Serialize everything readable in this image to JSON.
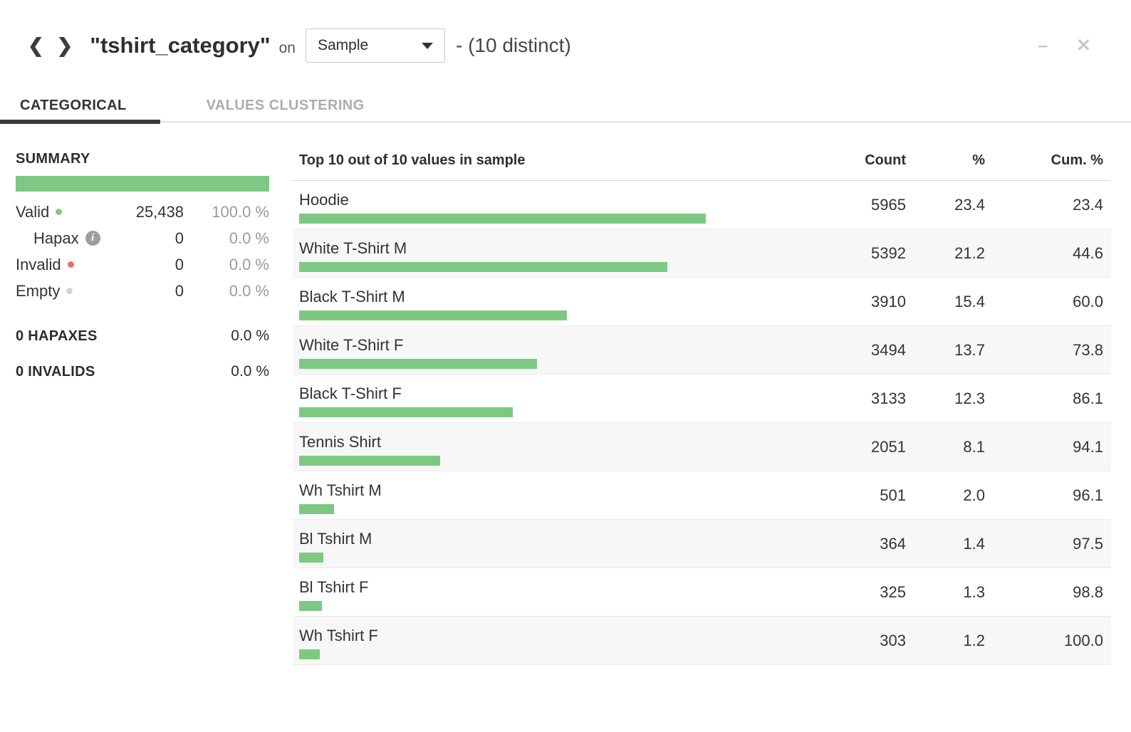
{
  "header": {
    "title": "\"tshirt_category\"",
    "on_label": "on",
    "sample_select": {
      "value": "Sample"
    },
    "distinct_label": "- (10 distinct)",
    "nav": {
      "prev_glyph": "❮",
      "next_glyph": "❯"
    },
    "window": {
      "minimize_glyph": "–",
      "close_glyph": "✕"
    }
  },
  "tabs": [
    {
      "label": "CATEGORICAL",
      "active": true
    },
    {
      "label": "VALUES CLUSTERING",
      "active": false
    }
  ],
  "summary": {
    "heading": "SUMMARY",
    "rows": [
      {
        "label": "Valid",
        "dot": "green",
        "count": "25,438",
        "pct": "100.0 %"
      },
      {
        "label": "Hapax",
        "info": true,
        "count": "0",
        "pct": "0.0 %"
      },
      {
        "label": "Invalid",
        "dot": "red",
        "count": "0",
        "pct": "0.0 %"
      },
      {
        "label": "Empty",
        "dot": "gray",
        "count": "0",
        "pct": "0.0 %"
      }
    ],
    "hapaxes": {
      "label": "0 HAPAXES",
      "pct": "0.0 %"
    },
    "invalids": {
      "label": "0 INVALIDS",
      "pct": "0.0 %"
    },
    "info_glyph": "i"
  },
  "table": {
    "title": "Top 10 out of 10 values in sample",
    "columns": [
      "Count",
      "%",
      "Cum. %"
    ],
    "rows": [
      {
        "value": "Hoodie",
        "count": "5965",
        "pct": "23.4",
        "cum": "23.4"
      },
      {
        "value": "White T-Shirt M",
        "count": "5392",
        "pct": "21.2",
        "cum": "44.6"
      },
      {
        "value": "Black T-Shirt M",
        "count": "3910",
        "pct": "15.4",
        "cum": "60.0"
      },
      {
        "value": "White T-Shirt F",
        "count": "3494",
        "pct": "13.7",
        "cum": "73.8"
      },
      {
        "value": "Black T-Shirt F",
        "count": "3133",
        "pct": "12.3",
        "cum": "86.1"
      },
      {
        "value": "Tennis Shirt",
        "count": "2051",
        "pct": "8.1",
        "cum": "94.1"
      },
      {
        "value": "Wh Tshirt M",
        "count": "501",
        "pct": "2.0",
        "cum": "96.1"
      },
      {
        "value": "Bl Tshirt M",
        "count": "364",
        "pct": "1.4",
        "cum": "97.5"
      },
      {
        "value": "Bl Tshirt F",
        "count": "325",
        "pct": "1.3",
        "cum": "98.8"
      },
      {
        "value": "Wh Tshirt F",
        "count": "303",
        "pct": "1.2",
        "cum": "100.0"
      }
    ]
  },
  "colors": {
    "accent_green": "#7dc983",
    "invalid_red": "#e26f6f",
    "empty_gray": "#d2d2d2",
    "stripe_bg": "#f7f7f7"
  }
}
